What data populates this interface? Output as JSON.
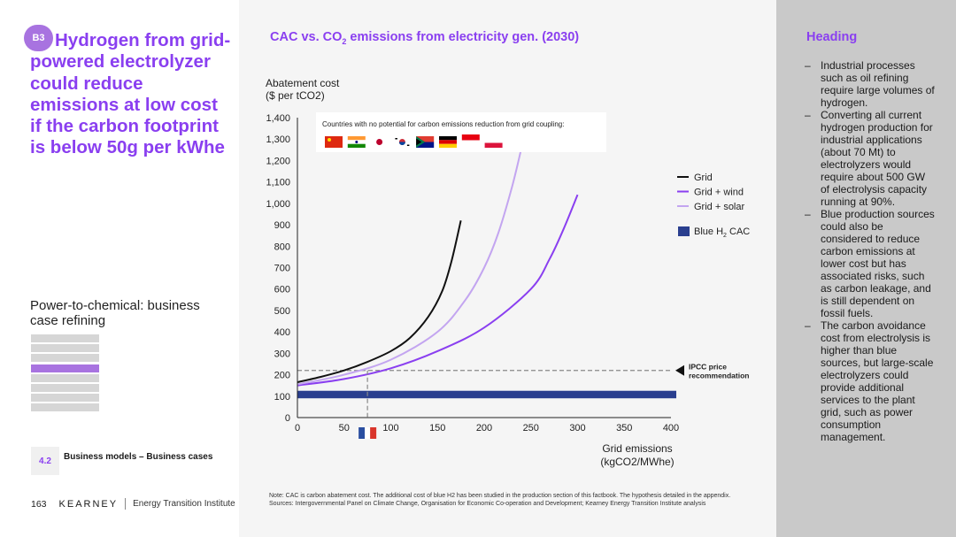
{
  "badge": "B3",
  "headline": "Hydrogen from grid-powered electrolyzer could reduce emissions at low cost if the carbon footprint is below 50g per kWhe",
  "subtitle": "Power-to-chemical: business case refining",
  "toc": {
    "count": 8,
    "active_index": 3
  },
  "section": {
    "number": "4.2",
    "label": "Business models – Business cases"
  },
  "footer": {
    "page": "163",
    "brand": "KEARNEY",
    "institute": "Energy Transition Institute"
  },
  "chart_title": {
    "pre": "CAC vs. CO",
    "sub": "2",
    "post": " emissions from electricity gen. (2030)"
  },
  "chart_data": {
    "type": "line",
    "ylabel_line1": "Abatement cost",
    "ylabel_line2": "($ per tCO2)",
    "xlabel_line1": "Grid emissions",
    "xlabel_line2": "(kgCO2/MWhe)",
    "xlim": [
      0,
      400
    ],
    "ylim": [
      0,
      1400
    ],
    "x_ticks": [
      0,
      50,
      100,
      150,
      200,
      250,
      300,
      350,
      400
    ],
    "y_ticks": [
      0,
      100,
      200,
      300,
      400,
      500,
      600,
      700,
      800,
      900,
      1000,
      1100,
      1200,
      1300,
      1400
    ],
    "series": [
      {
        "name": "Grid",
        "color": "#111111",
        "x": [
          0,
          25,
          50,
          75,
          100,
          120,
          140,
          155,
          165,
          175
        ],
        "y": [
          165,
          190,
          220,
          260,
          310,
          370,
          470,
          590,
          730,
          920
        ]
      },
      {
        "name": "Grid + wind",
        "color": "#8a3ff0",
        "x": [
          0,
          50,
          100,
          150,
          200,
          250,
          270,
          285,
          300
        ],
        "y": [
          150,
          180,
          230,
          310,
          420,
          600,
          740,
          880,
          1040
        ]
      },
      {
        "name": "Grid + solar",
        "color": "#c3a5f0",
        "x": [
          0,
          50,
          100,
          150,
          180,
          200,
          215,
          230,
          240
        ],
        "y": [
          155,
          200,
          270,
          400,
          550,
          700,
          860,
          1080,
          1260
        ]
      }
    ],
    "blue_h2": {
      "name": "Blue H",
      "name_sub": "2",
      "name_post": " CAC",
      "y_low": 90,
      "y_high": 125,
      "color": "#2a3f8f"
    },
    "ipcc": {
      "y": 220,
      "x_end": 400,
      "label_line1": "IPCC price",
      "label_line2": "recommendation"
    },
    "france_marker_x": 75,
    "flags_note": "Countries with no potential for carbon emissions reduction from grid coupling:",
    "flags": [
      "china",
      "india",
      "japan",
      "south-korea",
      "south-africa",
      "germany",
      "indonesia",
      "poland"
    ]
  },
  "note_line1": "Note: CAC is carbon abatement cost. The additional cost of blue H2 has been studied in the production section of this factbook. The hypothesis detailed in the appendix.",
  "note_line2": "Sources: Intergovernmental Panel on Climate Change, Organisation for Economic Co-operation and Development; Kearney Energy Transition Institute analysis",
  "right": {
    "heading": "Heading",
    "bullets": [
      "Industrial processes such as oil refining require large volumes of hydrogen.",
      "Converting all current hydrogen production for industrial applications (about 70 Mt) to electrolyzers would require about 500 GW of electrolysis capacity running at 90%.",
      "Blue production sources could also be considered to reduce carbon emissions at lower cost but has associated risks, such as carbon leakage, and is still dependent on fossil fuels.",
      "The carbon avoidance cost from electrolysis is higher than blue sources, but large-scale electrolyzers could provide additional services to the plant grid, such as power consumption management."
    ]
  }
}
